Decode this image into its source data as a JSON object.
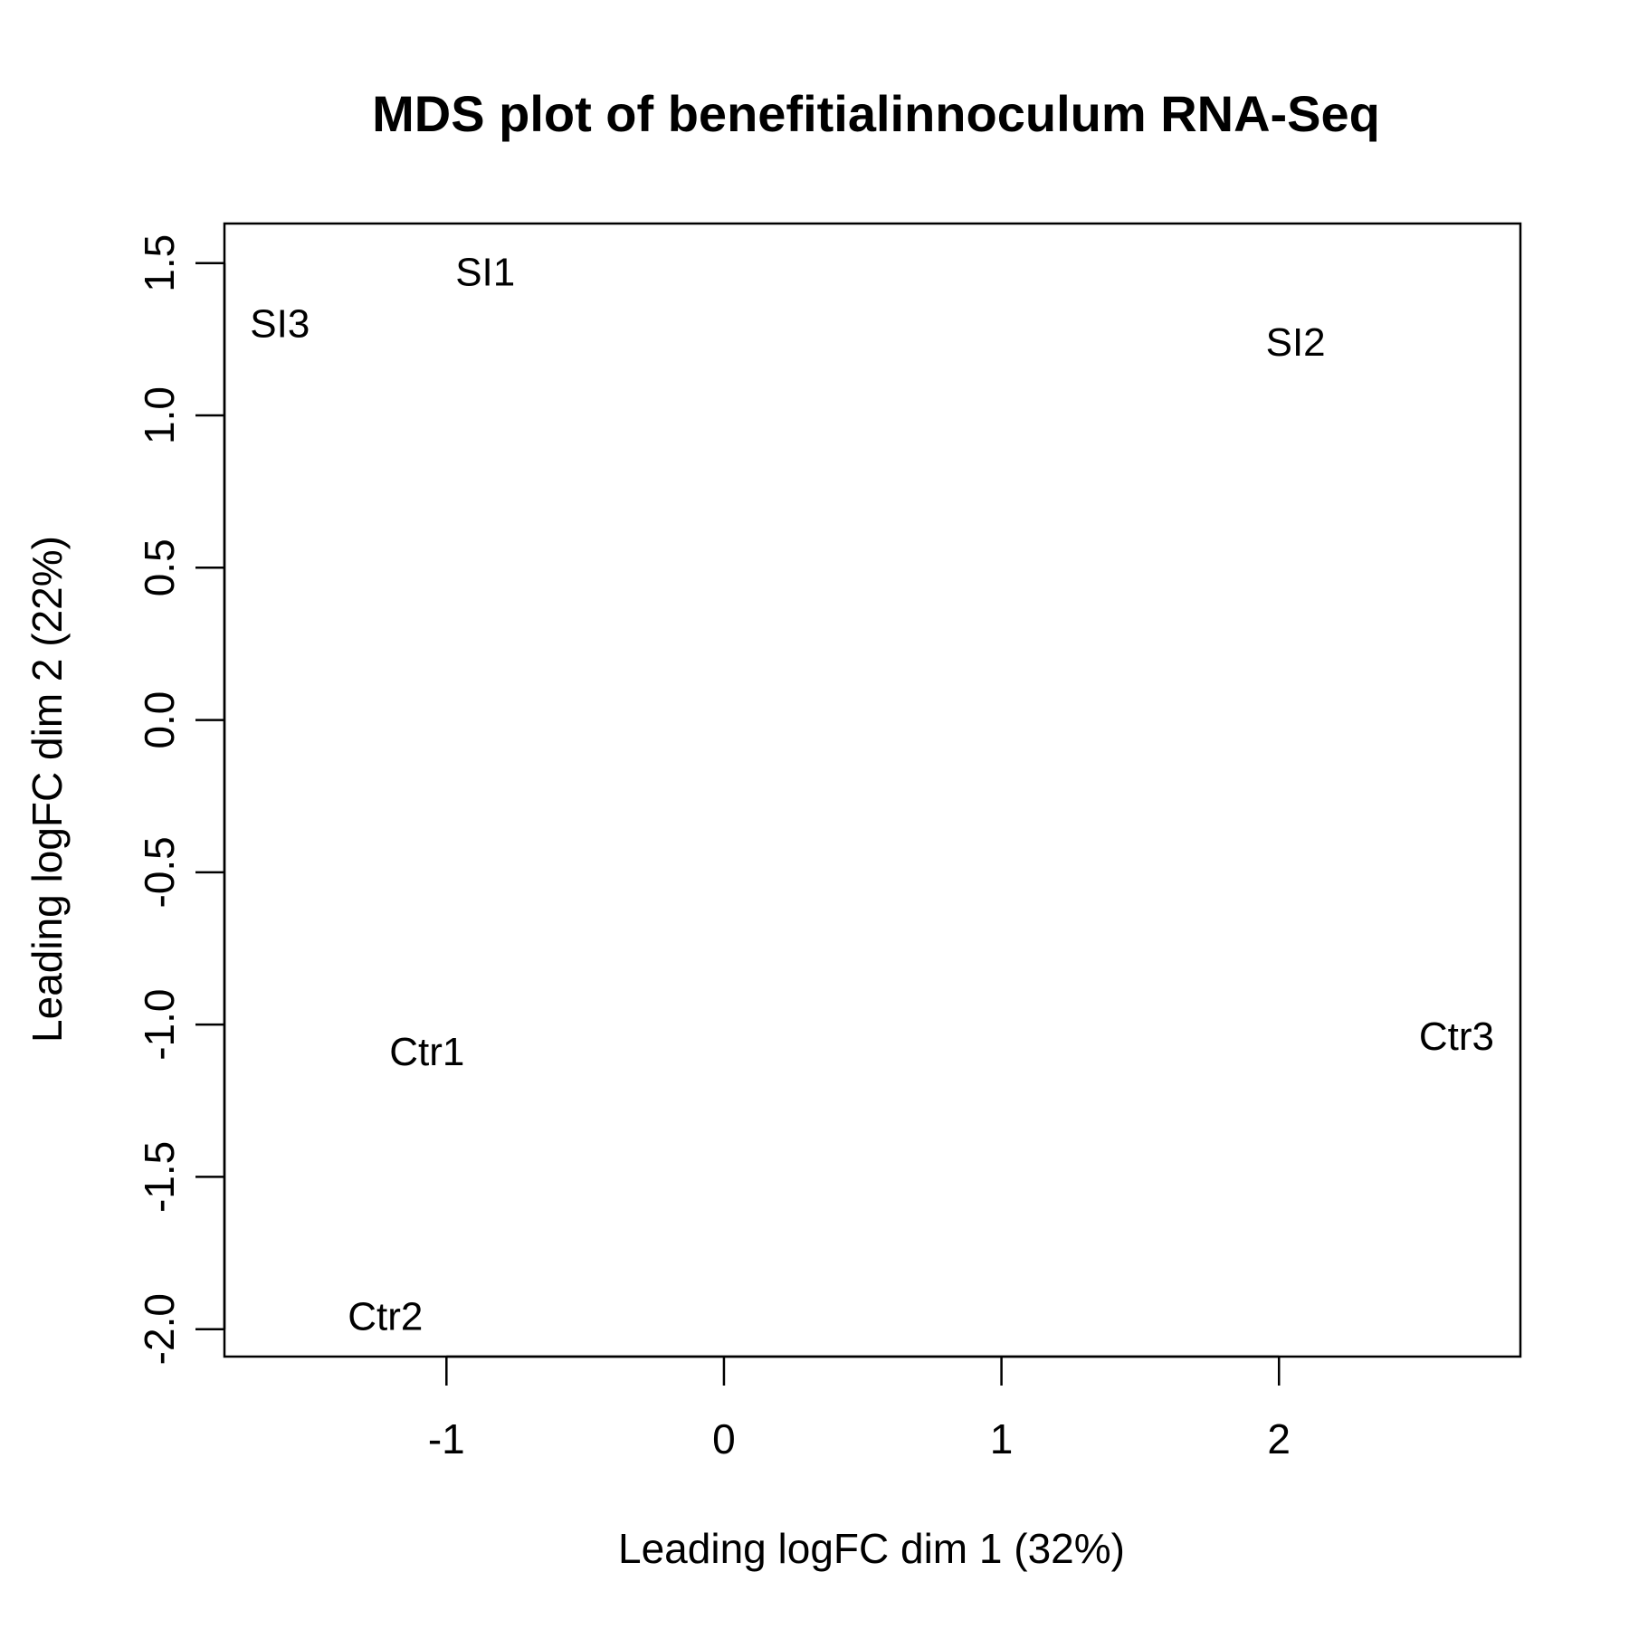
{
  "chart_data": {
    "type": "scatter",
    "title": "MDS plot of benefitialinnoculum RNA-Seq",
    "xlabel": "Leading logFC dim 1 (32%)",
    "ylabel": "Leading logFC dim 2 (22%)",
    "xlim": [
      -1.8,
      2.87
    ],
    "ylim": [
      -2.09,
      1.63
    ],
    "xticks": [
      -1,
      0,
      1,
      2
    ],
    "xtick_labels": [
      "-1",
      "0",
      "1",
      "2"
    ],
    "yticks": [
      -2.0,
      -1.5,
      -1.0,
      -0.5,
      0.0,
      0.5,
      1.0,
      1.5
    ],
    "ytick_labels": [
      "-2.0",
      "-1.5",
      "-1.0",
      "-0.5",
      "0.0",
      "0.5",
      "1.0",
      "1.5"
    ],
    "grid": false,
    "points": [
      {
        "label": "SI1",
        "x": -0.86,
        "y": 1.47
      },
      {
        "label": "SI3",
        "x": -1.6,
        "y": 1.3
      },
      {
        "label": "SI2",
        "x": 2.06,
        "y": 1.24
      },
      {
        "label": "Ctr1",
        "x": -1.07,
        "y": -1.09
      },
      {
        "label": "Ctr3",
        "x": 2.64,
        "y": -1.04
      },
      {
        "label": "Ctr2",
        "x": -1.22,
        "y": -1.96
      }
    ]
  }
}
